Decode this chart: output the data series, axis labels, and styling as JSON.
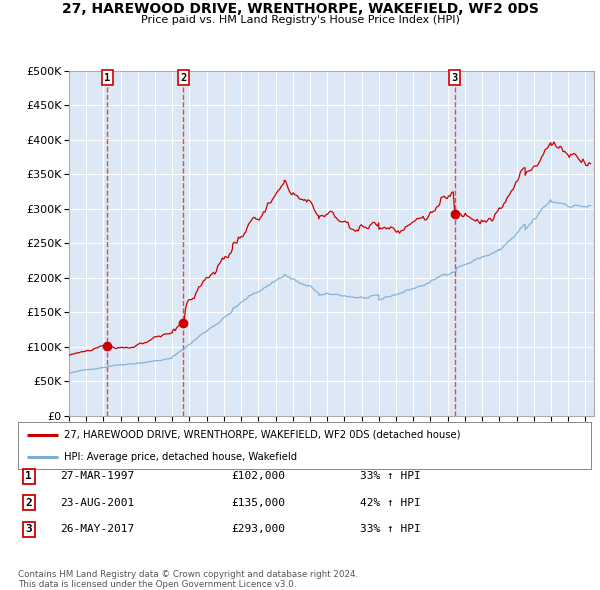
{
  "title": "27, HAREWOOD DRIVE, WRENTHORPE, WAKEFIELD, WF2 0DS",
  "subtitle": "Price paid vs. HM Land Registry's House Price Index (HPI)",
  "legend_line1": "27, HAREWOOD DRIVE, WRENTHORPE, WAKEFIELD, WF2 0DS (detached house)",
  "legend_line2": "HPI: Average price, detached house, Wakefield",
  "transactions": [
    {
      "num": 1,
      "date": "27-MAR-1997",
      "price": 102000,
      "pct": "33%",
      "dir": "↑"
    },
    {
      "num": 2,
      "date": "23-AUG-2001",
      "price": 135000,
      "pct": "42%",
      "dir": "↑"
    },
    {
      "num": 3,
      "date": "26-MAY-2017",
      "price": 293000,
      "pct": "33%",
      "dir": "↑"
    }
  ],
  "transaction_years": [
    1997.23,
    2001.64,
    2017.4
  ],
  "dot_prices": [
    102000,
    135000,
    293000
  ],
  "ytick_values": [
    0,
    50000,
    100000,
    150000,
    200000,
    250000,
    300000,
    350000,
    400000,
    450000,
    500000
  ],
  "xmin": 1995.0,
  "xmax": 2025.5,
  "ymin": 0,
  "ymax": 500000,
  "red_line_color": "#cc0000",
  "blue_line_color": "#7aadd4",
  "dashed_line_color": "#ee3333",
  "dot_color": "#cc0000",
  "background_color": "#dce8f5",
  "grid_color": "#ffffff",
  "copyright_text": "Contains HM Land Registry data © Crown copyright and database right 2024.\nThis data is licensed under the Open Government Licence v3.0."
}
